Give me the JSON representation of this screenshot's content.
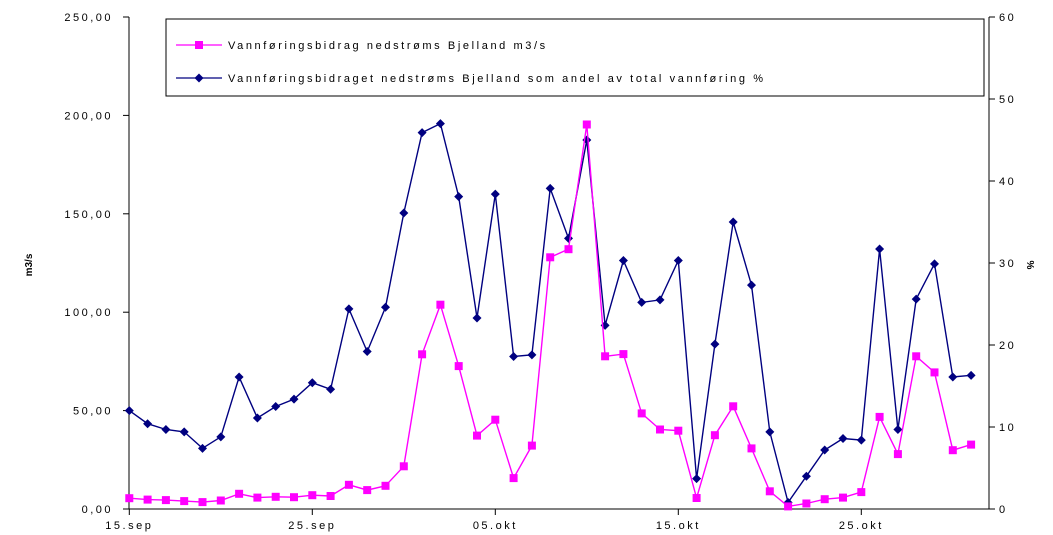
{
  "chart_data": {
    "type": "line",
    "title": "",
    "xlabel": "",
    "ylabel": "m3/s",
    "y2label": "%",
    "ylim": [
      0,
      250
    ],
    "y2lim": [
      0,
      60
    ],
    "yticks": [
      "0,00",
      "50,00",
      "100,00",
      "150,00",
      "200,00",
      "250,00"
    ],
    "y2ticks": [
      "0",
      "10",
      "20",
      "30",
      "40",
      "50",
      "60"
    ],
    "xtick_labels": [
      "15.sep",
      "25.sep",
      "05.okt",
      "15.okt",
      "25.okt"
    ],
    "x_start": "15.sep",
    "x_end": "29.okt",
    "grid": false,
    "legend_position": "top",
    "series": [
      {
        "name": "Vannføringsbidrag nedstrøms Bjelland m3/s",
        "axis": "left",
        "color": "#FF00FF",
        "marker": "square",
        "values": [
          5.5,
          4.8,
          4.5,
          4.0,
          3.5,
          4.3,
          7.7,
          5.8,
          6.2,
          6.0,
          7.0,
          6.6,
          12.3,
          9.6,
          11.8,
          21.7,
          78.6,
          103.8,
          72.6,
          37.3,
          45.4,
          15.7,
          32.2,
          127.9,
          132.0,
          195.4,
          77.6,
          78.7,
          48.6,
          40.4,
          39.8,
          5.6,
          37.5,
          52.2,
          30.8,
          9.0,
          1.3,
          2.8,
          5.0,
          5.8,
          8.6,
          46.8,
          27.9,
          77.6,
          69.4,
          29.9,
          32.7
        ]
      },
      {
        "name": "Vannføringsbidraget nedstrøms Bjelland som andel av total vannføring %",
        "axis": "right",
        "color": "#000080",
        "marker": "diamond",
        "values": [
          12.0,
          10.4,
          9.7,
          9.4,
          7.4,
          8.8,
          16.1,
          11.1,
          12.5,
          13.4,
          15.4,
          14.6,
          24.4,
          19.2,
          24.6,
          36.1,
          45.9,
          47.0,
          38.1,
          23.3,
          38.4,
          18.6,
          18.8,
          39.1,
          33.0,
          45.0,
          22.4,
          30.3,
          25.2,
          25.5,
          30.3,
          3.7,
          20.1,
          35.0,
          27.3,
          9.4,
          0.8,
          4.0,
          7.2,
          8.6,
          8.4,
          31.7,
          9.7,
          25.6,
          29.9,
          16.1,
          16.3
        ]
      }
    ]
  }
}
